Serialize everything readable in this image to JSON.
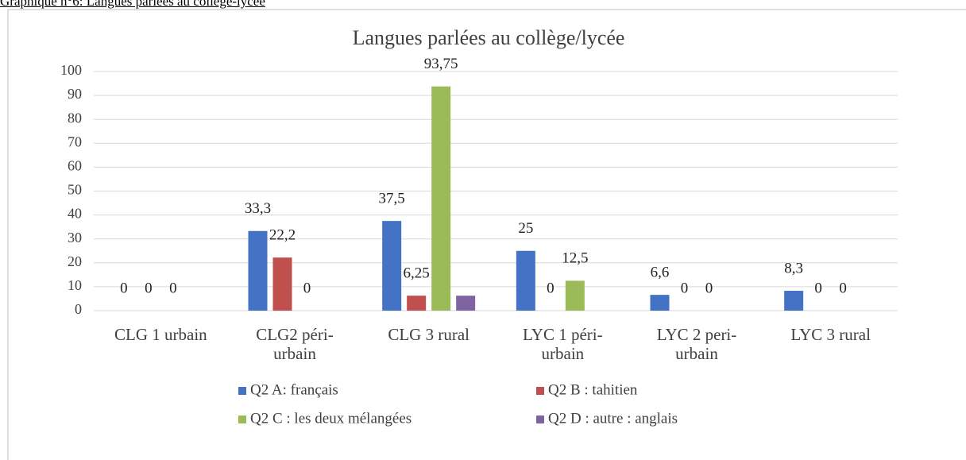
{
  "caption": "Graphique n°6: Langues parlées au collège-lycée",
  "chart_data": {
    "type": "bar",
    "title": "Langues parlées au collège/lycée",
    "categories": [
      "CLG 1 urbain",
      "CLG2 péri-urbain",
      "CLG 3 rural",
      "LYC 1 péri-urbain",
      "LYC 2 peri-urbain",
      "LYC 3 rural"
    ],
    "series": [
      {
        "name": "Q2 A: français",
        "color": "#4472c4",
        "values": [
          0,
          33.3,
          37.5,
          25,
          6.6,
          8.3
        ],
        "value_labels": [
          "0",
          "33,3",
          "37,5",
          "25",
          "6,6",
          "8,3"
        ]
      },
      {
        "name": "Q2 B : tahitien",
        "color": "#c0504d",
        "values": [
          0,
          22.2,
          6.25,
          0,
          0,
          0
        ],
        "value_labels": [
          "0",
          "22,2",
          "6,25",
          "0",
          "0",
          "0"
        ]
      },
      {
        "name": "Q2 C : les deux mélangées",
        "color": "#9bbb59",
        "values": [
          0,
          0,
          93.75,
          12.5,
          0,
          0
        ],
        "value_labels": [
          "0",
          "0",
          "93,75",
          "12,5",
          "0",
          "0"
        ]
      },
      {
        "name": "Q2 D : autre : anglais",
        "color": "#8064a2",
        "values": [
          null,
          null,
          6.25,
          null,
          null,
          null
        ],
        "value_labels": [
          null,
          null,
          null,
          null,
          null,
          null
        ]
      }
    ],
    "ylim": [
      0,
      100
    ],
    "yticks": [
      0,
      10,
      20,
      30,
      40,
      50,
      60,
      70,
      80,
      90,
      100
    ],
    "grid": true,
    "legend": "bottom"
  }
}
